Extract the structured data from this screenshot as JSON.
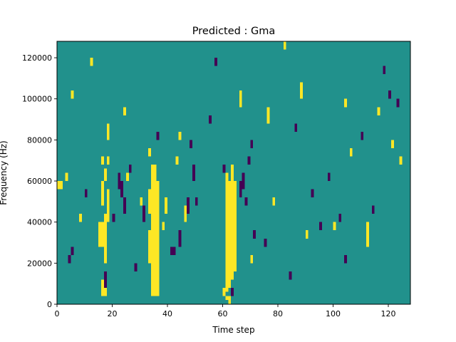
{
  "chart_data": {
    "type": "heatmap",
    "title": "Predicted : Gma",
    "xlabel": "Time step",
    "ylabel": "Frequency (Hz)",
    "xlim": [
      0,
      128
    ],
    "ylim": [
      0,
      128000
    ],
    "x_ticks": [
      0,
      20,
      40,
      60,
      80,
      100,
      120
    ],
    "y_ticks": [
      0,
      20000,
      40000,
      60000,
      80000,
      100000,
      120000
    ],
    "x_tick_labels": [
      "0",
      "20",
      "40",
      "60",
      "80",
      "100",
      "120"
    ],
    "y_tick_labels": [
      "0",
      "20000",
      "40000",
      "60000",
      "80000",
      "100000",
      "120000"
    ],
    "grid": false,
    "legend": "none",
    "value_levels": [
      -1,
      0,
      1
    ],
    "colors": {
      "low": "#440154",
      "mid": "#21918c",
      "high": "#fde725"
    },
    "n_time_steps": 128,
    "n_freq_bins": 64,
    "freq_bin_width_hz": 2000,
    "background_value": 0,
    "cells": [
      {
        "t": 16,
        "f": [
          2,
          6
        ],
        "v": 1
      },
      {
        "t": 17,
        "f": [
          2,
          6
        ],
        "v": 1
      },
      {
        "t": 15,
        "f": [
          14,
          20
        ],
        "v": 1
      },
      {
        "t": 16,
        "f": [
          14,
          20
        ],
        "v": 1
      },
      {
        "t": 17,
        "f": [
          10,
          22
        ],
        "v": 1
      },
      {
        "t": 18,
        "f": [
          20,
          28
        ],
        "v": 1
      },
      {
        "t": 16,
        "f": [
          24,
          30
        ],
        "v": 1
      },
      {
        "t": 17,
        "f": [
          30,
          33
        ],
        "v": 1
      },
      {
        "t": 16,
        "f": [
          34,
          36
        ],
        "v": 1
      },
      {
        "t": 18,
        "f": [
          34,
          36
        ],
        "v": 1
      },
      {
        "t": 33,
        "f": [
          10,
          18
        ],
        "v": 1
      },
      {
        "t": 34,
        "f": [
          2,
          34
        ],
        "v": 1
      },
      {
        "t": 35,
        "f": [
          2,
          34
        ],
        "v": 1
      },
      {
        "t": 36,
        "f": [
          2,
          30
        ],
        "v": 1
      },
      {
        "t": 33,
        "f": [
          22,
          28
        ],
        "v": 1
      },
      {
        "t": 33,
        "f": [
          36,
          38
        ],
        "v": 1
      },
      {
        "t": 60,
        "f": [
          2,
          4
        ],
        "v": 1
      },
      {
        "t": 61,
        "f": [
          3,
          32
        ],
        "v": 1
      },
      {
        "t": 62,
        "f": [
          4,
          30
        ],
        "v": 1
      },
      {
        "t": 63,
        "f": [
          6,
          34
        ],
        "v": 1
      },
      {
        "t": 64,
        "f": [
          8,
          30
        ],
        "v": 1
      },
      {
        "t": 61,
        "f": [
          1,
          2
        ],
        "v": 1
      },
      {
        "t": 62,
        "f": [
          0,
          2
        ],
        "v": 1
      },
      {
        "t": 0,
        "f": [
          28,
          30
        ],
        "v": 1
      },
      {
        "t": 1,
        "f": [
          28,
          30
        ],
        "v": 1
      },
      {
        "t": 8,
        "f": [
          20,
          22
        ],
        "v": 1
      },
      {
        "t": 30,
        "f": [
          24,
          26
        ],
        "v": 1
      },
      {
        "t": 39,
        "f": [
          22,
          26
        ],
        "v": 1
      },
      {
        "t": 46,
        "f": [
          20,
          24
        ],
        "v": 1
      },
      {
        "t": 100,
        "f": [
          18,
          20
        ],
        "v": 1
      },
      {
        "t": 112,
        "f": [
          14,
          20
        ],
        "v": 1
      },
      {
        "t": 5,
        "f": [
          50,
          52
        ],
        "v": 1
      },
      {
        "t": 12,
        "f": [
          58,
          60
        ],
        "v": 1
      },
      {
        "t": 18,
        "f": [
          40,
          44
        ],
        "v": 1
      },
      {
        "t": 24,
        "f": [
          46,
          48
        ],
        "v": 1
      },
      {
        "t": 44,
        "f": [
          40,
          42
        ],
        "v": 1
      },
      {
        "t": 66,
        "f": [
          48,
          52
        ],
        "v": 1
      },
      {
        "t": 76,
        "f": [
          44,
          48
        ],
        "v": 1
      },
      {
        "t": 82,
        "f": [
          62,
          64
        ],
        "v": 1
      },
      {
        "t": 88,
        "f": [
          50,
          54
        ],
        "v": 1
      },
      {
        "t": 104,
        "f": [
          48,
          50
        ],
        "v": 1
      },
      {
        "t": 116,
        "f": [
          46,
          48
        ],
        "v": 1
      },
      {
        "t": 121,
        "f": [
          38,
          40
        ],
        "v": 1
      },
      {
        "t": 124,
        "f": [
          34,
          36
        ],
        "v": 1
      },
      {
        "t": 3,
        "f": [
          30,
          32
        ],
        "v": 1
      },
      {
        "t": 78,
        "f": [
          24,
          26
        ],
        "v": 1
      },
      {
        "t": 90,
        "f": [
          16,
          18
        ],
        "v": 1
      },
      {
        "t": 70,
        "f": [
          10,
          12
        ],
        "v": 1
      },
      {
        "t": 38,
        "f": [
          18,
          20
        ],
        "v": 1
      },
      {
        "t": 25,
        "f": [
          30,
          32
        ],
        "v": 1
      },
      {
        "t": 43,
        "f": [
          34,
          36
        ],
        "v": 1
      },
      {
        "t": 106,
        "f": [
          36,
          38
        ],
        "v": 1
      },
      {
        "t": 118,
        "f": [
          56,
          58
        ],
        "v": -1
      },
      {
        "t": 17,
        "f": [
          4,
          8
        ],
        "v": -1
      },
      {
        "t": 4,
        "f": [
          10,
          12
        ],
        "v": -1
      },
      {
        "t": 5,
        "f": [
          12,
          14
        ],
        "v": -1
      },
      {
        "t": 22,
        "f": [
          28,
          32
        ],
        "v": -1
      },
      {
        "t": 23,
        "f": [
          26,
          30
        ],
        "v": -1
      },
      {
        "t": 24,
        "f": [
          22,
          26
        ],
        "v": -1
      },
      {
        "t": 26,
        "f": [
          32,
          34
        ],
        "v": -1
      },
      {
        "t": 31,
        "f": [
          20,
          24
        ],
        "v": -1
      },
      {
        "t": 41,
        "f": [
          12,
          14
        ],
        "v": -1
      },
      {
        "t": 42,
        "f": [
          12,
          14
        ],
        "v": -1
      },
      {
        "t": 44,
        "f": [
          14,
          18
        ],
        "v": -1
      },
      {
        "t": 47,
        "f": [
          22,
          26
        ],
        "v": -1
      },
      {
        "t": 49,
        "f": [
          30,
          34
        ],
        "v": -1
      },
      {
        "t": 48,
        "f": [
          38,
          40
        ],
        "v": -1
      },
      {
        "t": 50,
        "f": [
          24,
          26
        ],
        "v": -1
      },
      {
        "t": 63,
        "f": [
          2,
          4
        ],
        "v": -1
      },
      {
        "t": 66,
        "f": [
          26,
          30
        ],
        "v": -1
      },
      {
        "t": 67,
        "f": [
          28,
          32
        ],
        "v": -1
      },
      {
        "t": 68,
        "f": [
          24,
          26
        ],
        "v": -1
      },
      {
        "t": 69,
        "f": [
          34,
          36
        ],
        "v": -1
      },
      {
        "t": 71,
        "f": [
          16,
          18
        ],
        "v": -1
      },
      {
        "t": 86,
        "f": [
          42,
          44
        ],
        "v": -1
      },
      {
        "t": 95,
        "f": [
          18,
          20
        ],
        "v": -1
      },
      {
        "t": 102,
        "f": [
          20,
          22
        ],
        "v": -1
      },
      {
        "t": 104,
        "f": [
          10,
          12
        ],
        "v": -1
      },
      {
        "t": 110,
        "f": [
          40,
          42
        ],
        "v": -1
      },
      {
        "t": 120,
        "f": [
          50,
          52
        ],
        "v": -1
      },
      {
        "t": 70,
        "f": [
          38,
          40
        ],
        "v": -1
      },
      {
        "t": 60,
        "f": [
          32,
          34
        ],
        "v": -1
      },
      {
        "t": 55,
        "f": [
          44,
          46
        ],
        "v": -1
      },
      {
        "t": 36,
        "f": [
          40,
          42
        ],
        "v": -1
      },
      {
        "t": 20,
        "f": [
          20,
          22
        ],
        "v": -1
      },
      {
        "t": 10,
        "f": [
          26,
          28
        ],
        "v": -1
      },
      {
        "t": 28,
        "f": [
          8,
          10
        ],
        "v": -1
      },
      {
        "t": 57,
        "f": [
          58,
          60
        ],
        "v": -1
      },
      {
        "t": 75,
        "f": [
          14,
          16
        ],
        "v": -1
      },
      {
        "t": 92,
        "f": [
          26,
          28
        ],
        "v": -1
      },
      {
        "t": 98,
        "f": [
          30,
          32
        ],
        "v": -1
      },
      {
        "t": 114,
        "f": [
          22,
          24
        ],
        "v": -1
      },
      {
        "t": 84,
        "f": [
          6,
          8
        ],
        "v": -1
      },
      {
        "t": 123,
        "f": [
          48,
          50
        ],
        "v": -1
      }
    ]
  }
}
